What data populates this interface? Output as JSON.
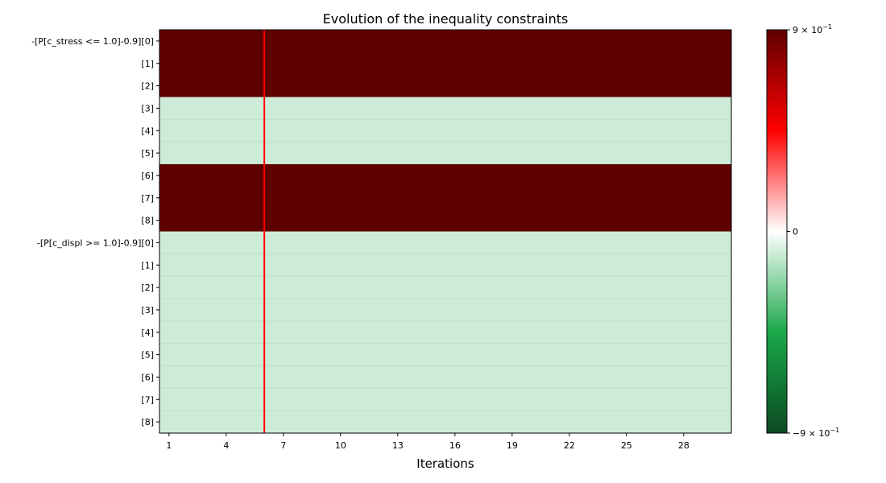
{
  "chart_data": {
    "type": "heatmap",
    "title": "Evolution of the inequality constraints",
    "xlabel": "Iterations",
    "ylabel": "",
    "x_ticks": [
      1,
      4,
      7,
      10,
      13,
      16,
      19,
      22,
      25,
      28
    ],
    "x_range": [
      1,
      30
    ],
    "rows": [
      "-[P[c_stress <= 1.0]-0.9][0]",
      "[1]",
      "[2]",
      "[3]",
      "[4]",
      "[5]",
      "[6]",
      "[7]",
      "[8]",
      "-[P[c_displ >= 1.0]-0.9][0]",
      "[1]",
      "[2]",
      "[3]",
      "[4]",
      "[5]",
      "[6]",
      "[7]",
      "[8]"
    ],
    "row_values": [
      0.9,
      0.9,
      0.9,
      -0.1,
      -0.1,
      -0.1,
      0.9,
      0.9,
      0.9,
      -0.1,
      -0.1,
      -0.1,
      -0.1,
      -0.1,
      -0.1,
      -0.1,
      -0.1,
      -0.1
    ],
    "optimum_iteration": 6,
    "optimum_line_color": "#ff0000",
    "colorbar": {
      "vmin": -0.9,
      "vmax": 0.9,
      "tick_top": {
        "base": "9 × 10",
        "exp": "−1"
      },
      "tick_mid": "0",
      "tick_bottom": {
        "base": "−9 × 10",
        "exp": "−1"
      },
      "colors": [
        "#0c4a22",
        "#1aa84a",
        "#ffffff",
        "#ff0000",
        "#5f0000"
      ]
    },
    "grid": true,
    "legend": "none"
  }
}
